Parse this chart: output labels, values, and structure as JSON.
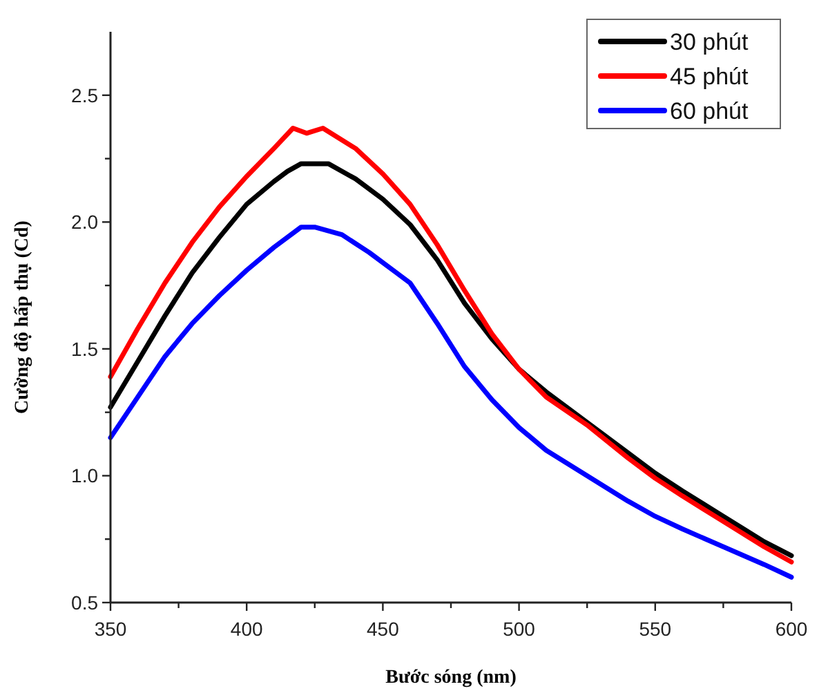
{
  "chart_data": {
    "type": "line",
    "xlabel": "Bước sóng (nm)",
    "ylabel": "Cường độ hấp thụ (Cd)",
    "xlim": [
      350,
      600
    ],
    "xticks": [
      350,
      {
        "value": 375,
        "label": null
      },
      400,
      {
        "value": 425,
        "label": null
      },
      450,
      {
        "value": 475,
        "label": null
      },
      500,
      {
        "value": 525,
        "label": null
      },
      550,
      {
        "value": 575,
        "label": null
      },
      600
    ],
    "ylim": [
      0.5,
      2.75
    ],
    "yticks": [
      "0.5",
      {
        "value": 0.75,
        "label": null
      },
      {
        "value": 1,
        "label": "1.0"
      },
      {
        "value": 1.25,
        "label": null
      },
      1.5,
      {
        "value": 1.75,
        "label": null
      },
      {
        "value": 2,
        "label": "2.0"
      },
      {
        "value": 2.25,
        "label": null
      },
      2.5
    ],
    "grid": false,
    "legend": "top right",
    "line_style": "solid",
    "series": [
      {
        "name": "30 phút",
        "color": "#000000",
        "x": [
          350,
          360,
          370,
          380,
          390,
          400,
          410,
          415,
          420,
          430,
          440,
          450,
          460,
          470,
          480,
          490,
          500,
          510,
          525,
          540,
          550,
          560,
          575,
          590,
          600
        ],
        "values": [
          1.27,
          1.45,
          1.63,
          1.8,
          1.94,
          2.07,
          2.16,
          2.2,
          2.23,
          2.23,
          2.17,
          2.09,
          1.99,
          1.85,
          1.68,
          1.54,
          1.42,
          1.33,
          1.21,
          1.09,
          1.01,
          0.94,
          0.84,
          0.74,
          0.685
        ]
      },
      {
        "name": "45 phút",
        "color": "#ff0000",
        "x": [
          350,
          360,
          370,
          380,
          390,
          400,
          410,
          417,
          422,
          428,
          440,
          450,
          460,
          470,
          480,
          490,
          500,
          510,
          525,
          540,
          550,
          560,
          575,
          590,
          600
        ],
        "values": [
          1.39,
          1.58,
          1.76,
          1.92,
          2.06,
          2.18,
          2.29,
          2.37,
          2.35,
          2.37,
          2.29,
          2.19,
          2.07,
          1.91,
          1.73,
          1.56,
          1.42,
          1.31,
          1.2,
          1.07,
          0.99,
          0.92,
          0.82,
          0.72,
          0.66
        ]
      },
      {
        "name": "60 phút",
        "color": "#0000ff",
        "x": [
          350,
          360,
          370,
          380,
          390,
          400,
          410,
          420,
          425,
          435,
          445,
          455,
          460,
          470,
          480,
          490,
          500,
          510,
          525,
          540,
          550,
          560,
          575,
          590,
          600
        ],
        "values": [
          1.15,
          1.31,
          1.47,
          1.6,
          1.71,
          1.81,
          1.9,
          1.98,
          1.98,
          1.95,
          1.88,
          1.8,
          1.76,
          1.6,
          1.43,
          1.3,
          1.19,
          1.1,
          1,
          0.9,
          0.84,
          0.79,
          0.72,
          0.65,
          0.6
        ]
      }
    ]
  }
}
